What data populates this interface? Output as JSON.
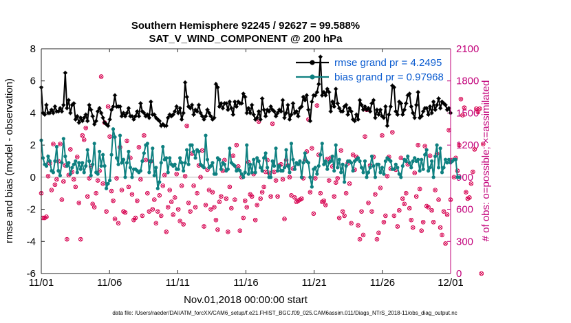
{
  "chart_data": {
    "type": "line",
    "title_line1": "Southern Hemisphere 92245 / 92627 = 99.588%",
    "title_line2": "SAT_V_WIND_COMPONENT @ 200 hPa",
    "xlabel": "Nov.01,2018 00:00:00 start",
    "ylabel_left": "rmse and bias (model - observation)",
    "ylabel_right": "# of obs: o=possible; ×=assimilated",
    "ylim_left": [
      -6,
      8
    ],
    "ylim_right": [
      0,
      2100
    ],
    "x_range_days": [
      0,
      30
    ],
    "xticks": [
      {
        "x": 0,
        "label": "11/01"
      },
      {
        "x": 5,
        "label": "11/06"
      },
      {
        "x": 10,
        "label": "11/11"
      },
      {
        "x": 15,
        "label": "11/16"
      },
      {
        "x": 20,
        "label": "11/21"
      },
      {
        "x": 25,
        "label": "11/26"
      },
      {
        "x": 30,
        "label": "12/01"
      }
    ],
    "yticks_left": [
      "-6",
      "-4",
      "-2",
      "0",
      "2",
      "4",
      "6",
      "8"
    ],
    "yticks_right": [
      "0",
      "300",
      "600",
      "900",
      "1200",
      "1500",
      "1800",
      "2100"
    ],
    "footer": "data file: /Users/raeder/DAI/ATM_forcXX/CAM6_setup/f.e21.FHIST_BGC.f09_025.CAM6assim.011/Diags_NTrS_2018-11/obs_diag_output.nc",
    "colors": {
      "rmse": "#000000",
      "bias": "#0e8080",
      "obs": "#d6004f",
      "axis_right": "#c2007a",
      "zero_line": "#c8c8c8"
    },
    "series": [
      {
        "name": "rmse grand pr = 4.2495",
        "axis": "left",
        "values": [
          5.6,
          4.0,
          3.9,
          4.5,
          4.0,
          4.0,
          4.2,
          4.0,
          4.4,
          4.1,
          4.1,
          4.3,
          4.1,
          4.5,
          6.5,
          4.3,
          4.8,
          4.0,
          4.5,
          4.6,
          3.6,
          3.8,
          3.4,
          3.7,
          3.5,
          3.7,
          3.9,
          3.5,
          4.5,
          4.2,
          3.8,
          3.3,
          3.5,
          4.1,
          4.3,
          4.0,
          3.7,
          3.4,
          3.3,
          3.2,
          3.6,
          4.2,
          4.4,
          5.1,
          4.4,
          4.4,
          4.4,
          3.8,
          4.0,
          3.8,
          4.0,
          4.3,
          3.8,
          3.8,
          3.6,
          3.8,
          4.1,
          3.8,
          4.6,
          4.1,
          4.0,
          3.8,
          3.9,
          3.7,
          4.7,
          3.9,
          3.9,
          3.7,
          3.6,
          3.5,
          3.2,
          3.3,
          3.2,
          3.2,
          3.7,
          3.9,
          3.8,
          3.9,
          4.1,
          4.4,
          4.0,
          4.3,
          3.6,
          4.0,
          5.9,
          5.0,
          4.4,
          4.3,
          4.5,
          3.9,
          4.2,
          4.1,
          4.5,
          4.0,
          3.8,
          3.6,
          3.8,
          4.2,
          4.0,
          3.8,
          3.6,
          3.7,
          5.8,
          5.6,
          4.4,
          4.6,
          4.3,
          4.6,
          4.6,
          4.2,
          4.7,
          4.3,
          3.9,
          4.7,
          4.4,
          4.7,
          4.6,
          4.6,
          5.2,
          5.0,
          4.0,
          4.3,
          4.0,
          4.5,
          3.9,
          3.6,
          3.7,
          4.1,
          3.6,
          4.9,
          4.2,
          3.8,
          4.2,
          4.1,
          4.4,
          4.2,
          4.1,
          3.8,
          4.0,
          4.2,
          4.1,
          4.8,
          3.7,
          4.0,
          4.5,
          3.6,
          3.9,
          4.6,
          4.0,
          4.1,
          3.8,
          4.3,
          4.4,
          5.0,
          4.8,
          5.1,
          4.2,
          3.5,
          4.7,
          5.1,
          5.1,
          5.3,
          5.8,
          7.5,
          5.1,
          5.3,
          5.1,
          5.5,
          5.3,
          4.1,
          4.7,
          4.4,
          5.5,
          4.6,
          4.3,
          4.1,
          4.1,
          4.4,
          4.5,
          3.9,
          4.3,
          4.1,
          3.6,
          3.5,
          3.9,
          3.6,
          4.8,
          4.5,
          4.2,
          4.4,
          4.2,
          4.3,
          4.1,
          4.6,
          4.8,
          3.7,
          4.2,
          3.9,
          4.2,
          3.8,
          3.7,
          4.4,
          3.2,
          3.9,
          4.4,
          5.7,
          5.6,
          4.1,
          3.9,
          4.7,
          4.6,
          3.9,
          4.2,
          4.6,
          5.1,
          5.2,
          4.4,
          4.0,
          3.7,
          4.5,
          5.3,
          3.7,
          3.8,
          4.1,
          4.3,
          4.3,
          3.9,
          4.4,
          4.0,
          4.7,
          4.2,
          4.5,
          4.9,
          4.3,
          4.7,
          4.6,
          4.5,
          4.2,
          4.3,
          4.0
        ]
      },
      {
        "name": "bias grand pr = 0.97968",
        "axis": "left",
        "values": [
          2.3,
          1.2,
          0.8,
          0.7,
          1.3,
          1.0,
          0.4,
          0.3,
          1.0,
          1.9,
          0.4,
          0.1,
          0.9,
          2.4,
          1.3,
          0.7,
          0.9,
          0.2,
          0.6,
          0.8,
          1.0,
          0.3,
          0.9,
          0.5,
          0.9,
          0.3,
          0.7,
          1.7,
          1.0,
          0.1,
          0.8,
          2.1,
          0.3,
          0.2,
          1.6,
          0.7,
          1.4,
          0.7,
          -0.7,
          -0.4,
          -0.2,
          1.4,
          3.0,
          2.5,
          1.2,
          0.8,
          2.6,
          0.9,
          1.1,
          0.0,
          0.9,
          1.6,
          0.6,
          0.0,
          0.5,
          0.5,
          0.4,
          0.3,
          0.4,
          1.0,
          1.5,
          2.0,
          2.1,
          0.3,
          1.0,
          1.8,
          0.1,
          0.6,
          -0.7,
          -0.3,
          0.9,
          1.9,
          1.1,
          1.2,
          0.3,
          1.2,
          0.8,
          0.7,
          0.8,
          0.5,
          0.5,
          1.2,
          0.9,
          0.4,
          0.9,
          1.7,
          0.8,
          2.0,
          2.0,
          1.6,
          1.2,
          1.7,
          1.6,
          0.8,
          0.7,
          0.6,
          2.6,
          1.1,
          0.6,
          0.7,
          0.9,
          0.2,
          0.2,
          1.2,
          1.1,
          0.5,
          0.9,
          0.8,
          0.4,
          0.5,
          1.8,
          0.9,
          0.8,
          0.7,
          0.4,
          0.5,
          0.4,
          0.2,
          0.0,
          0.3,
          2.0,
          0.2,
          0.8,
          0.3,
          1.1,
          0.3,
          1.2,
          1.0,
          0.6,
          0.4,
          1.2,
          1.5,
          0.6,
          0.0,
          0.0,
          1.0,
          0.7,
          1.8,
          0.4,
          0.7,
          0.4,
          0.4,
          0.6,
          1.7,
          0.7,
          0.3,
          2.1,
          1.1,
          0.5,
          0.9,
          0.8,
          1.0,
          0.0,
          0.9,
          1.5,
          1.0,
          0.9,
          0.0,
          -0.6,
          0.5,
          0.6,
          0.2,
          0.7,
          1.4,
          2.1,
          0.8,
          1.0,
          0.5,
          0.9,
          1.0,
          1.3,
          0.4,
          2.0,
          0.6,
          1.1,
          0.3,
          0.8,
          -0.3,
          0.7,
          1.0,
          1.0,
          0.9,
          0.4,
          1.0,
          1.1,
          1.2,
          1.0,
          0.6,
          0.3,
          1.0,
          0.0,
          0.3,
          0.6,
          1.3,
          0.7,
          0.0,
          0.8,
          0.8,
          0.3,
          0.6,
          0.2,
          1.0,
          1.2,
          1.1,
          1.0,
          0.5,
          0.5,
          0.8,
          0.6,
          0.2,
          0.0,
          0.7,
          1.1,
          1.0,
          1.3,
          0.9,
          0.6,
          1.0,
          1.2,
          1.0,
          1.1,
          0.4,
          1.1,
          0.5,
          1.4,
          1.7,
          0.4,
          0.6,
          1.0,
          0.0,
          1.3,
          2.0,
          0.6,
          1.8,
          0.3,
          0.6,
          1.1,
          0.9,
          1.1,
          0.9,
          1.0,
          1.1,
          1.1,
          0.0,
          0.0
        ]
      },
      {
        "name": "# obs possible / assimilated",
        "axis": "right",
        "values": [
          750,
          520,
          520,
          530,
          910,
          1030,
          780,
          1210,
          830,
          880,
          1050,
          1210,
          690,
          860,
          1010,
          320,
          920,
          1160,
          950,
          880,
          810,
          1090,
          660,
          320,
          1290,
          1250,
          1360,
          720,
          890,
          1000,
          650,
          620,
          750,
          870,
          960,
          1840,
          840,
          1410,
          580,
          1560,
          1280,
          770,
          680,
          510,
          890,
          470,
          1180,
          780,
          580,
          570,
          1240,
          810,
          1080,
          740,
          500,
          520,
          680,
          1180,
          880,
          540,
          1290,
          1060,
          750,
          580,
          1050,
          600,
          690,
          470,
          580,
          730,
          540,
          820,
          920,
          390,
          620,
          780,
          670,
          550,
          710,
          930,
          600,
          490,
          820,
          460,
          910,
          1380,
          660,
          580,
          1120,
          820,
          620,
          750,
          1010,
          900,
          1150,
          440,
          640,
          970,
          780,
          600,
          760,
          620,
          500,
          410,
          670,
          720,
          960,
          1060,
          700,
          390,
          810,
          610,
          1100,
          690,
          1200,
          1000,
          400,
          900,
          520,
          680,
          620,
          1040,
          740,
          720,
          930,
          500,
          640,
          1420,
          700,
          760,
          810,
          950,
          1060,
          940,
          720,
          1400,
          950,
          870,
          720,
          1010,
          1020,
          880,
          510,
          1060,
          1010,
          900,
          730,
          980,
          710,
          670,
          680,
          690,
          700,
          890,
          1060,
          1140,
          1440,
          760,
          1170,
          560,
          890,
          1570,
          1110,
          750,
          670,
          680,
          640,
          1070,
          870,
          1080,
          1000,
          720,
          850,
          890,
          520,
          1150,
          580,
          540,
          750,
          1030,
          840,
          470,
          1110,
          970,
          1090,
          450,
          320,
          580,
          360,
          1280,
          1530,
          660,
          1010,
          580,
          1090,
          740,
          320,
          380,
          800,
          1290,
          480,
          540,
          910,
          1090,
          980,
          1320,
          540,
          970,
          440,
          590,
          1080,
          700,
          650,
          750,
          1020,
          610,
          500,
          430,
          940,
          720,
          1200,
          790,
          400,
          480,
          1190,
          630,
          620,
          1100,
          590,
          480,
          780,
          1120,
          690,
          430,
          360,
          580,
          280,
          550,
          1340,
          690,
          1060,
          900,
          1080,
          960,
          1200,
          1630,
          1480,
          1550,
          760,
          700,
          710,
          840,
          950,
          1160,
          1540,
          1510,
          1540,
          0,
          1210
        ]
      }
    ]
  }
}
